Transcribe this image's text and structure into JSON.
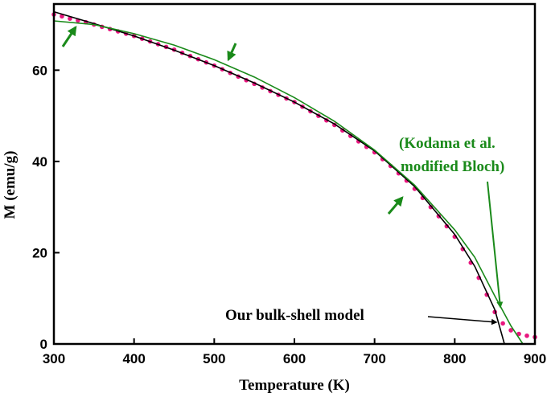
{
  "chart_data": {
    "type": "line",
    "x_label": "Temperature (K)",
    "y_label": "M (emu/g)",
    "xlim": [
      300,
      900
    ],
    "ylim": [
      0,
      74.5
    ],
    "xticks": [
      300,
      400,
      500,
      600,
      700,
      800,
      900
    ],
    "yticks": [
      0,
      20,
      40,
      60
    ],
    "annotations": [
      "(Kodama et al.",
      "modified Bloch)",
      "Our bulk-shell model"
    ],
    "annotation_colors": [
      "#1a8a1a",
      "#1a8a1a",
      "#000000"
    ],
    "series": [
      {
        "type": "scatter",
        "color": "#e8177f",
        "x": [
          300,
          310,
          320,
          330,
          340,
          350,
          360,
          370,
          380,
          390,
          400,
          410,
          420,
          430,
          440,
          450,
          460,
          470,
          480,
          490,
          500,
          510,
          520,
          530,
          540,
          550,
          560,
          570,
          580,
          590,
          600,
          610,
          620,
          630,
          640,
          650,
          660,
          670,
          680,
          690,
          700,
          710,
          720,
          730,
          740,
          750,
          760,
          770,
          780,
          790,
          800,
          810,
          820,
          830,
          840,
          850,
          860,
          870,
          880,
          890,
          900
        ],
        "values": [
          72.2,
          71.8,
          71.3,
          70.9,
          70.5,
          70.0,
          69.5,
          69.0,
          68.5,
          68.0,
          67.5,
          66.9,
          66.3,
          65.7,
          65.1,
          64.5,
          63.8,
          63.1,
          62.4,
          61.7,
          61.0,
          60.2,
          59.4,
          58.6,
          57.8,
          57.0,
          56.2,
          55.4,
          54.6,
          53.8,
          53.0,
          52.0,
          51.0,
          50.0,
          49.0,
          48.0,
          46.8,
          45.6,
          44.4,
          43.2,
          42.0,
          40.5,
          39.0,
          37.4,
          35.8,
          34.0,
          32.0,
          30.0,
          28.0,
          25.8,
          23.5,
          20.8,
          17.8,
          14.5,
          10.8,
          7.0,
          4.5,
          3.0,
          2.2,
          1.8,
          1.5
        ]
      },
      {
        "type": "line",
        "color": "#000000",
        "x": [
          300,
          350,
          400,
          450,
          500,
          550,
          600,
          650,
          700,
          750,
          800,
          825,
          850,
          862
        ],
        "values": [
          72.8,
          70.2,
          67.5,
          64.4,
          61.0,
          57.2,
          53.0,
          48.2,
          42.3,
          34.5,
          24.0,
          17.0,
          7.5,
          0
        ]
      },
      {
        "type": "line",
        "color": "#1a8a1a",
        "x": [
          300,
          350,
          400,
          450,
          500,
          550,
          600,
          650,
          700,
          750,
          800,
          825,
          850,
          870,
          885
        ],
        "values": [
          70.8,
          70.0,
          68.0,
          65.5,
          62.3,
          58.5,
          54.0,
          48.8,
          42.5,
          34.8,
          25.0,
          19.0,
          10.5,
          4.0,
          0
        ]
      }
    ]
  }
}
